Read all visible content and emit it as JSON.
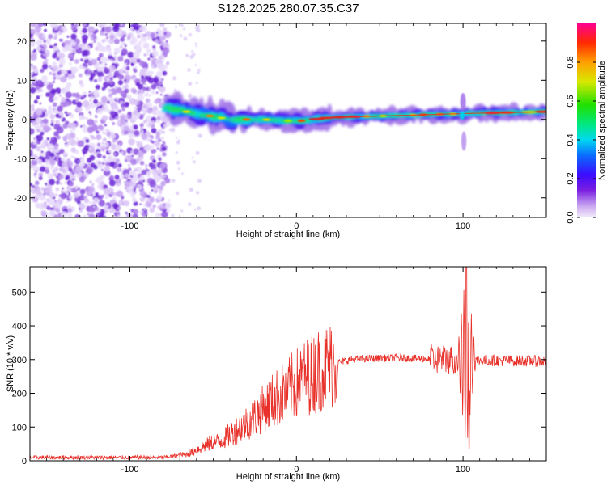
{
  "title": "S126.2025.280.07.35.C37",
  "chart_data": [
    {
      "type": "heatmap",
      "xlabel": "Height of straight line (km)",
      "ylabel": "Frequency (Hz)",
      "xlim": [
        -160,
        150
      ],
      "ylim": [
        -25,
        24.5
      ],
      "xticks": [
        -100,
        0,
        100
      ],
      "xtick_labels": [
        "-100",
        "0",
        "100"
      ],
      "yticks": [
        20,
        10,
        0,
        -10,
        -20
      ],
      "ytick_labels": [
        "20",
        "10",
        "0",
        "-10",
        "-20"
      ],
      "colorbar": {
        "label": "Normalized spectral amplitude",
        "range": [
          0,
          1
        ],
        "ticks": [
          0,
          0.2,
          0.4,
          0.6,
          0.8
        ],
        "tick_labels": [
          "0.0",
          "0.2",
          "0.4",
          "0.6",
          "0.8"
        ],
        "colormap": "rainbow (light purple → blue → cyan → green → yellow → red → magenta)"
      },
      "features": {
        "noise_region_x": [
          -160,
          -77
        ],
        "signal_ridge": [
          {
            "x": -78,
            "f": 3
          },
          {
            "x": -60,
            "f": 1.5
          },
          {
            "x": -40,
            "f": 0
          },
          {
            "x": -20,
            "f": 0
          },
          {
            "x": 0,
            "f": -0.5
          },
          {
            "x": 20,
            "f": 0.5
          },
          {
            "x": 60,
            "f": 1
          },
          {
            "x": 100,
            "f": 1.5
          },
          {
            "x": 150,
            "f": 2
          }
        ],
        "spike_x": 100,
        "spike_f_range": [
          -9,
          9
        ]
      }
    },
    {
      "type": "line",
      "xlabel": "Height of straight line (km)",
      "ylabel": "SNR (10 * v/v)",
      "xlim": [
        -160,
        150
      ],
      "ylim": [
        0,
        575
      ],
      "xticks": [
        -100,
        0,
        100
      ],
      "xtick_labels": [
        "-100",
        "0",
        "100"
      ],
      "yticks": [
        0,
        100,
        200,
        300,
        400,
        500
      ],
      "ytick_labels": [
        "0",
        "100",
        "200",
        "300",
        "400",
        "500"
      ],
      "series_color": "#e8312a",
      "envelope": [
        {
          "x": -160,
          "y": 10
        },
        {
          "x": -80,
          "y": 10
        },
        {
          "x": -65,
          "y": 20
        },
        {
          "x": -55,
          "y": 45
        },
        {
          "x": -45,
          "y": 60
        },
        {
          "x": -35,
          "y": 95
        },
        {
          "x": -25,
          "y": 130
        },
        {
          "x": -15,
          "y": 175
        },
        {
          "x": -5,
          "y": 210
        },
        {
          "x": 5,
          "y": 245
        },
        {
          "x": 15,
          "y": 275
        },
        {
          "x": 25,
          "y": 292
        },
        {
          "x": 35,
          "y": 302
        },
        {
          "x": 60,
          "y": 305
        },
        {
          "x": 90,
          "y": 300
        },
        {
          "x": 110,
          "y": 298
        },
        {
          "x": 150,
          "y": 295
        }
      ],
      "spike": {
        "x": 102,
        "max": 575,
        "min": 35
      }
    }
  ]
}
